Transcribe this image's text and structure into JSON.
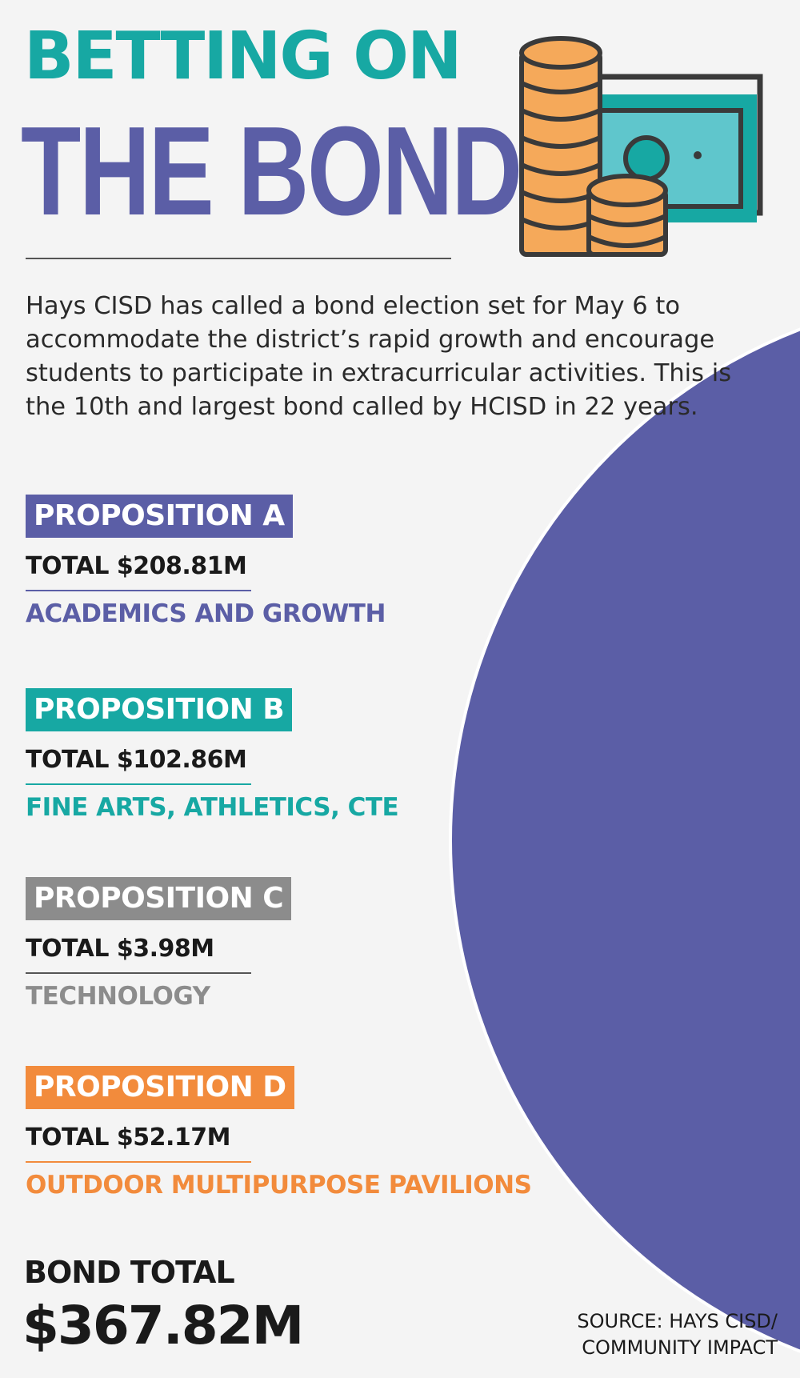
{
  "header": {
    "title_line1": "BETTING ON",
    "title_line2": "THE BOND"
  },
  "intro": "Hays CISD has called a bond election set for May 6 to accommodate the district’s rapid growth and encourage students to participate in extracurricular activities. This is the 10th and largest bond called by HCISD in 22 years.",
  "colors": {
    "teal": "#17a8a3",
    "purple": "#5b5ea6",
    "gray": "#8c8c8c",
    "orange": "#f28b3c",
    "coin": "#f5a95a",
    "bill": "#5fc6cc",
    "dark": "#3a3a3a"
  },
  "propositions": [
    {
      "badge": "PROPOSITION A",
      "total": "TOTAL $208.81M",
      "category": "ACADEMICS AND GROWTH",
      "color": "#5b5ea6"
    },
    {
      "badge": "PROPOSITION B",
      "total": "TOTAL $102.86M",
      "category": "FINE ARTS, ATHLETICS, CTE",
      "color": "#17a8a3"
    },
    {
      "badge": "PROPOSITION C",
      "total": "TOTAL $3.98M",
      "category": "TECHNOLOGY",
      "color": "#8c8c8c"
    },
    {
      "badge": "PROPOSITION D",
      "total": "TOTAL $52.17M",
      "category": "OUTDOOR MULTIPURPOSE PAVILIONS",
      "color": "#f28b3c"
    }
  ],
  "bond_total": {
    "label": "BOND TOTAL",
    "value": "$367.82M"
  },
  "source": {
    "line1": "SOURCE: HAYS CISD/",
    "line2": "COMMUNITY IMPACT"
  },
  "icon": "coins-and-cash-icon",
  "chart_data": {
    "type": "pie",
    "title": "",
    "unit": "$M",
    "slices": [
      {
        "label": "PROPOSITION A",
        "value": 208.81,
        "color": "#5b5ea6"
      },
      {
        "label": "PROPOSITION B",
        "value": 102.86,
        "color": "#17a8a3"
      },
      {
        "label": "PROPOSITION D",
        "value": 52.17,
        "color": "#f28b3c"
      },
      {
        "label": "PROPOSITION C",
        "value": 3.98,
        "color": "#8c8c8c"
      }
    ],
    "total": 367.82,
    "legend": "left"
  }
}
